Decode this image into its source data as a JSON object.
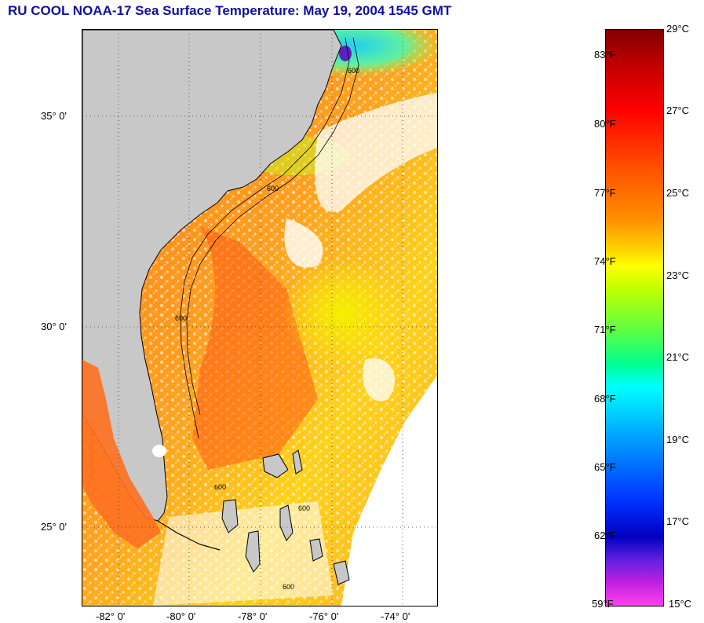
{
  "title": "RU COOL  NOAA-17  Sea Surface Temperature:  May 19, 2004 1545 GMT",
  "map": {
    "lat_labels": [
      "35° 0'",
      "30° 0'",
      "25° 0'"
    ],
    "lon_labels": [
      "-82° 0'",
      "-80° 0'",
      "-78° 0'",
      "-76° 0'",
      "-74° 0'"
    ],
    "isobath_labels": [
      "600",
      "600",
      "600",
      "600",
      "600",
      "600"
    ],
    "land_color": "#c8c8c8",
    "cloud_color": "#ffffff"
  },
  "colorbar": {
    "fahrenheit_labels": [
      "83°F",
      "80°F",
      "77°F",
      "74°F",
      "71°F",
      "68°F",
      "65°F",
      "62°F",
      "59°F"
    ],
    "celsius_labels": [
      "29°C",
      "27°C",
      "25°C",
      "23°C",
      "21°C",
      "19°C",
      "17°C",
      "15°C"
    ],
    "celsius_min": 15,
    "celsius_max": 29
  }
}
